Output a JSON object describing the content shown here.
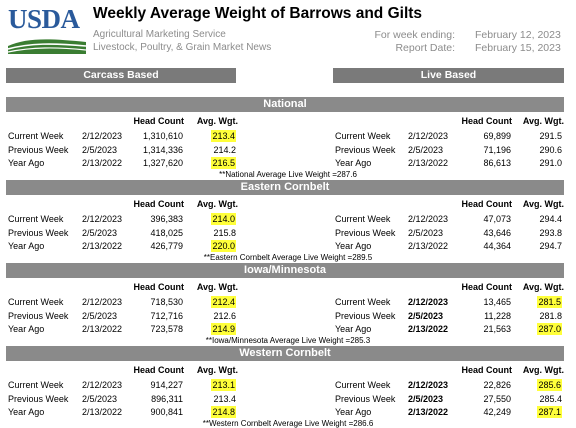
{
  "header": {
    "logo_text": "USDA",
    "title": "Weekly Average Weight of Barrows and Gilts",
    "agency": "Agricultural Marketing Service",
    "division": "Livestock, Poultry, & Grain Market News",
    "week_ending_label": "For week ending:",
    "week_ending_value": "February 12, 2023",
    "report_date_label": "Report Date:",
    "report_date_value": "February 15, 2023",
    "logo_colors": {
      "text": "#2a5a9b",
      "wave_green": "#3a7d32",
      "wave_blue": "#2a5a9b"
    }
  },
  "columns": {
    "carcass": "Carcass Based",
    "live": "Live Based",
    "head_count": "Head Count",
    "avg_wgt": "Avg. Wgt."
  },
  "highlight_color": "#ffff3a",
  "sections": [
    {
      "name": "National",
      "note": "**National Average Live Weight =287.6",
      "carcass": [
        {
          "label": "Current Week",
          "date": "2/12/2023",
          "head": "1,310,610",
          "wgt": "213.4"
        },
        {
          "label": "Previous Week",
          "date": "2/5/2023",
          "head": "1,314,336",
          "wgt": "214.2"
        },
        {
          "label": "Year Ago",
          "date": "2/13/2022",
          "head": "1,327,620",
          "wgt": "216.5"
        }
      ],
      "live": [
        {
          "label": "Current Week",
          "date": "2/12/2023",
          "head": "69,899",
          "wgt": "291.5"
        },
        {
          "label": "Previous Week",
          "date": "2/5/2023",
          "head": "71,196",
          "wgt": "290.6"
        },
        {
          "label": "Year Ago",
          "date": "2/13/2022",
          "head": "86,613",
          "wgt": "291.0"
        }
      ]
    },
    {
      "name": "Eastern Cornbelt",
      "note": "**Eastern Cornbelt Average Live Weight =289.5",
      "carcass": [
        {
          "label": "Current Week",
          "date": "2/12/2023",
          "head": "396,383",
          "wgt": "214.0"
        },
        {
          "label": "Previous Week",
          "date": "2/5/2023",
          "head": "418,025",
          "wgt": "215.8"
        },
        {
          "label": "Year Ago",
          "date": "2/13/2022",
          "head": "426,779",
          "wgt": "220.0"
        }
      ],
      "live": [
        {
          "label": "Current Week",
          "date": "2/12/2023",
          "head": "47,073",
          "wgt": "294.4"
        },
        {
          "label": "Previous Week",
          "date": "2/5/2023",
          "head": "43,646",
          "wgt": "293.8"
        },
        {
          "label": "Year Ago",
          "date": "2/13/2022",
          "head": "44,364",
          "wgt": "294.7"
        }
      ]
    },
    {
      "name": "Iowa/Minnesota",
      "note": "**Iowa/Minnesota Average Live Weight =285.3",
      "carcass": [
        {
          "label": "Current Week",
          "date": "2/12/2023",
          "head": "718,530",
          "wgt": "212.4"
        },
        {
          "label": "Previous Week",
          "date": "2/5/2023",
          "head": "712,716",
          "wgt": "212.6"
        },
        {
          "label": "Year Ago",
          "date": "2/13/2022",
          "head": "723,578",
          "wgt": "214.9"
        }
      ],
      "live": [
        {
          "label": "Current Week",
          "date": "2/12/2023",
          "head": "13,465",
          "wgt": "281.5"
        },
        {
          "label": "Previous Week",
          "date": "2/5/2023",
          "head": "11,228",
          "wgt": "281.8"
        },
        {
          "label": "Year Ago",
          "date": "2/13/2022",
          "head": "21,563",
          "wgt": "287.0"
        }
      ]
    },
    {
      "name": "Western Cornbelt",
      "note": "**Western Cornbelt Average Live Weight =286.6",
      "carcass": [
        {
          "label": "Current Week",
          "date": "2/12/2023",
          "head": "914,227",
          "wgt": "213.1"
        },
        {
          "label": "Previous Week",
          "date": "2/5/2023",
          "head": "896,311",
          "wgt": "213.4"
        },
        {
          "label": "Year Ago",
          "date": "2/13/2022",
          "head": "900,841",
          "wgt": "214.8"
        }
      ],
      "live": [
        {
          "label": "Current Week",
          "date": "2/12/2023",
          "head": "22,826",
          "wgt": "285.6"
        },
        {
          "label": "Previous Week",
          "date": "2/5/2023",
          "head": "27,550",
          "wgt": "285.4"
        },
        {
          "label": "Year Ago",
          "date": "2/13/2022",
          "head": "42,249",
          "wgt": "287.1"
        }
      ]
    }
  ]
}
